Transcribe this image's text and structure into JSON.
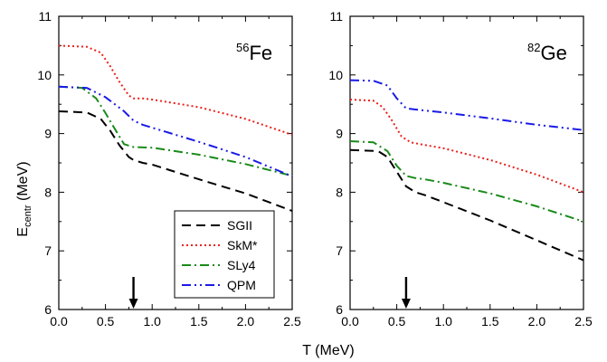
{
  "figure": {
    "ylabel_main": "E",
    "ylabel_sub": "centr",
    "ylabel_unit": " (MeV)",
    "xlabel": "T (MeV)"
  },
  "chart_data": [
    {
      "type": "line",
      "panel": "left",
      "label_mass": "56",
      "label_symbol": "Fe",
      "xlim": [
        0.0,
        2.5
      ],
      "ylim": [
        6,
        11
      ],
      "xticks": [
        "0.0",
        "0.5",
        "1.0",
        "1.5",
        "2.0",
        "2.5"
      ],
      "yticks": [
        "6",
        "7",
        "8",
        "9",
        "10",
        "11"
      ],
      "arrow_x": 0.8,
      "series": [
        {
          "name": "SGII",
          "color": "#000000",
          "dash": "10,6",
          "x": [
            0.0,
            0.3,
            0.45,
            0.55,
            0.65,
            0.75,
            0.8,
            0.9,
            1.0,
            1.5,
            2.0,
            2.5
          ],
          "y": [
            9.38,
            9.36,
            9.25,
            9.05,
            8.8,
            8.6,
            8.55,
            8.5,
            8.47,
            8.22,
            7.98,
            7.68
          ]
        },
        {
          "name": "SkM*",
          "color": "#e8221b",
          "dash": "2,3",
          "x": [
            0.0,
            0.3,
            0.45,
            0.55,
            0.65,
            0.75,
            0.8,
            0.9,
            1.0,
            1.5,
            2.0,
            2.5
          ],
          "y": [
            10.5,
            10.48,
            10.38,
            10.15,
            9.88,
            9.65,
            9.6,
            9.6,
            9.58,
            9.45,
            9.25,
            8.98
          ]
        },
        {
          "name": "SLy4",
          "color": "#1a8a1a",
          "dash": "10,4,2,4",
          "x": [
            0.0,
            0.25,
            0.4,
            0.5,
            0.6,
            0.7,
            0.8,
            1.0,
            1.5,
            2.0,
            2.5
          ],
          "y": [
            9.8,
            9.78,
            9.6,
            9.35,
            9.08,
            8.82,
            8.77,
            8.76,
            8.64,
            8.48,
            8.28
          ]
        },
        {
          "name": "QPM",
          "color": "#1a1ae6",
          "dash": "10,4,2,4,2,4",
          "x": [
            0.0,
            0.3,
            0.5,
            0.7,
            0.8,
            0.9,
            1.0,
            1.5,
            2.0,
            2.5
          ],
          "y": [
            9.8,
            9.78,
            9.62,
            9.38,
            9.22,
            9.15,
            9.1,
            8.86,
            8.6,
            8.27
          ]
        }
      ]
    },
    {
      "type": "line",
      "panel": "right",
      "label_mass": "82",
      "label_symbol": "Ge",
      "xlim": [
        0.0,
        2.5
      ],
      "ylim": [
        6,
        11
      ],
      "xticks": [
        "0.0",
        "0.5",
        "1.0",
        "1.5",
        "2.0",
        "2.5"
      ],
      "yticks": [
        "6",
        "7",
        "8",
        "9",
        "10",
        "11"
      ],
      "arrow_x": 0.6,
      "series": [
        {
          "name": "SGII",
          "color": "#000000",
          "dash": "10,6",
          "x": [
            0.0,
            0.3,
            0.4,
            0.5,
            0.6,
            0.7,
            0.8,
            1.0,
            1.5,
            2.0,
            2.5
          ],
          "y": [
            8.72,
            8.7,
            8.6,
            8.35,
            8.1,
            8.0,
            7.95,
            7.83,
            7.52,
            7.18,
            6.84
          ]
        },
        {
          "name": "SkM*",
          "color": "#e8221b",
          "dash": "2,3",
          "x": [
            0.0,
            0.25,
            0.35,
            0.45,
            0.55,
            0.65,
            0.75,
            1.0,
            1.5,
            2.0,
            2.5
          ],
          "y": [
            9.58,
            9.56,
            9.45,
            9.22,
            8.95,
            8.85,
            8.82,
            8.75,
            8.55,
            8.3,
            8.0
          ]
        },
        {
          "name": "SLy4",
          "color": "#1a8a1a",
          "dash": "10,4,2,4",
          "x": [
            0.0,
            0.25,
            0.4,
            0.5,
            0.6,
            0.7,
            0.8,
            1.0,
            1.5,
            2.0,
            2.5
          ],
          "y": [
            8.87,
            8.85,
            8.7,
            8.45,
            8.28,
            8.24,
            8.22,
            8.16,
            7.98,
            7.76,
            7.5
          ]
        },
        {
          "name": "QPM",
          "color": "#1a1ae6",
          "dash": "10,4,2,4,2,4",
          "x": [
            0.0,
            0.25,
            0.4,
            0.5,
            0.6,
            0.7,
            1.0,
            1.5,
            2.0,
            2.5
          ],
          "y": [
            9.91,
            9.9,
            9.82,
            9.6,
            9.43,
            9.41,
            9.36,
            9.26,
            9.15,
            9.06
          ]
        }
      ]
    }
  ],
  "legend": [
    {
      "name": "SGII",
      "color": "#000000",
      "dash": "10,6"
    },
    {
      "name": "SkM*",
      "color": "#e8221b",
      "dash": "2,3"
    },
    {
      "name": "SLy4",
      "color": "#1a8a1a",
      "dash": "10,4,2,4"
    },
    {
      "name": "QPM",
      "color": "#1a1ae6",
      "dash": "10,4,2,4,2,4"
    }
  ]
}
